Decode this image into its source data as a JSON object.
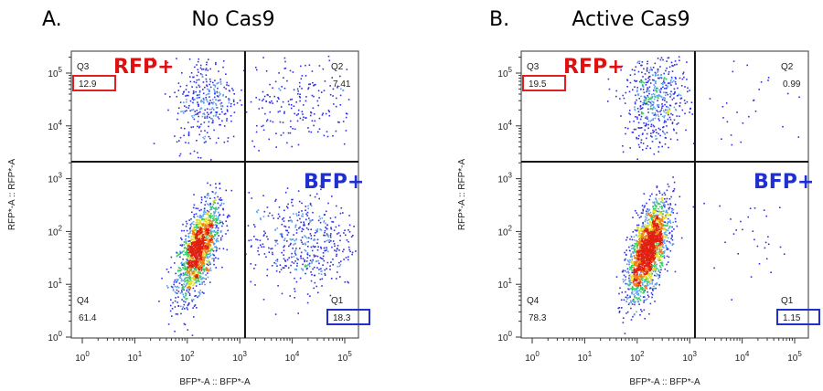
{
  "chart_data": [
    {
      "type": "scatter",
      "panel_label": "A.",
      "title": "No Cas9",
      "xlabel": "BFP*-A :: BFP*-A",
      "ylabel": "RFP*-A :: RFP*-A",
      "x_scale": "log",
      "y_scale": "log",
      "x_ticks": [
        "10^0",
        "10^1",
        "10^2",
        "10^3",
        "10^4",
        "10^5"
      ],
      "y_ticks": [
        "10^0",
        "10^1",
        "10^2",
        "10^3",
        "10^4",
        "10^5"
      ],
      "gate_x": 1260,
      "gate_y": 2100,
      "quadrants": [
        {
          "name": "Q3",
          "value": "12.9",
          "highlight": "#e02020"
        },
        {
          "name": "Q2",
          "value": "7.41"
        },
        {
          "name": "Q4",
          "value": "61.4"
        },
        {
          "name": "Q1",
          "value": "18.3",
          "highlight": "#2030d0"
        }
      ],
      "annotations": [
        {
          "text": "RFP+",
          "color": "#e01010"
        },
        {
          "text": "BFP+",
          "color": "#2030d0"
        }
      ]
    },
    {
      "type": "scatter",
      "panel_label": "B.",
      "title": "Active Cas9",
      "xlabel": "BFP*-A :: BFP*-A",
      "ylabel": "RFP*-A :: RFP*-A",
      "x_scale": "log",
      "y_scale": "log",
      "x_ticks": [
        "10^0",
        "10^1",
        "10^2",
        "10^3",
        "10^4",
        "10^5"
      ],
      "y_ticks": [
        "10^0",
        "10^1",
        "10^2",
        "10^3",
        "10^4",
        "10^5"
      ],
      "gate_x": 1260,
      "gate_y": 2100,
      "quadrants": [
        {
          "name": "Q3",
          "value": "19.5",
          "highlight": "#e02020"
        },
        {
          "name": "Q2",
          "value": "0.99"
        },
        {
          "name": "Q4",
          "value": "78.3"
        },
        {
          "name": "Q1",
          "value": "1.15",
          "highlight": "#2030d0"
        }
      ],
      "annotations": [
        {
          "text": "RFP+",
          "color": "#e01010"
        },
        {
          "text": "BFP+",
          "color": "#2030d0"
        }
      ]
    }
  ],
  "density_colors": [
    "#3030e0",
    "#5aa0f0",
    "#30d060",
    "#e0e020",
    "#f08010",
    "#e02010"
  ]
}
